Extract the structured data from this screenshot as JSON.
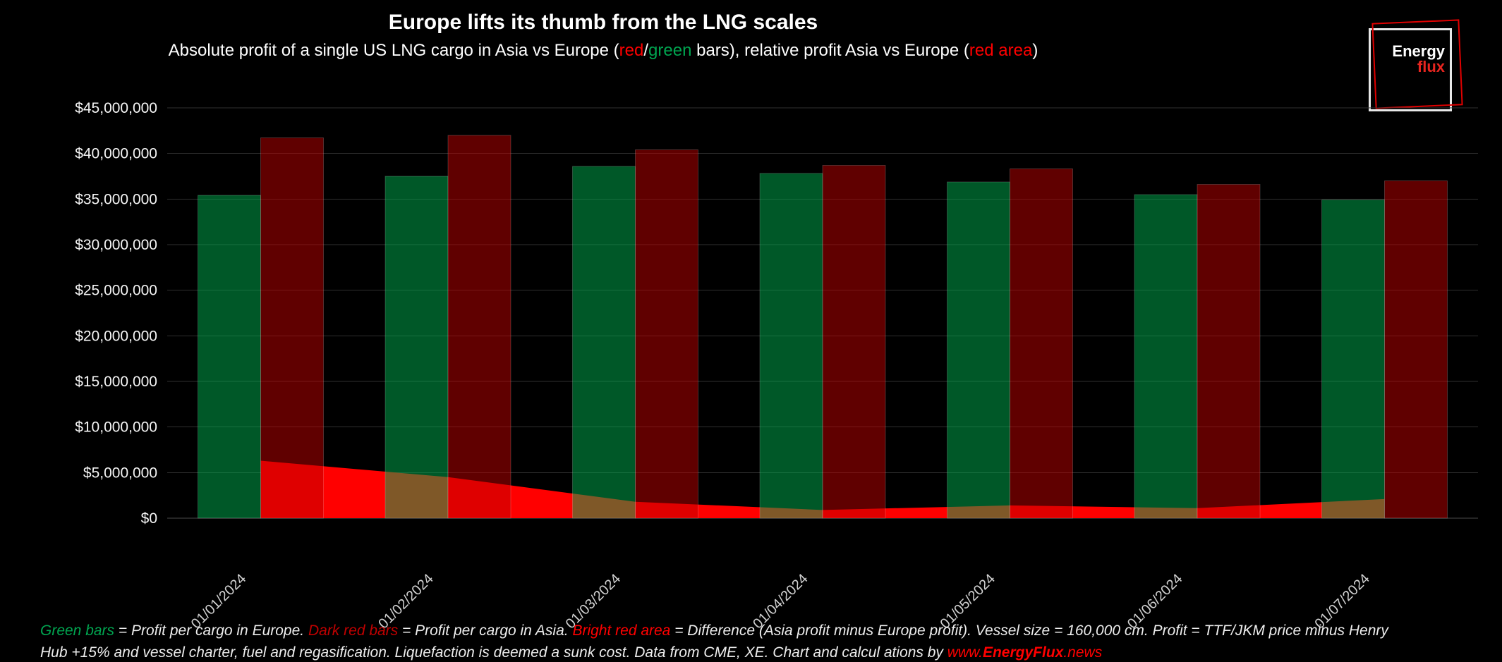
{
  "header": {
    "title": "Europe lifts its thumb from the LNG scales",
    "subtitle": {
      "s1": "Absolute profit of a single US LNG cargo in Asia vs Europe (",
      "red_word": "red",
      "slash": "/",
      "green_word": "green",
      "s2": " bars), relative profit Asia vs Europe (",
      "red_area_word": "red area",
      "s3": ")"
    }
  },
  "logo": {
    "line1": "Energy",
    "line2": "flux"
  },
  "chart_data": {
    "type": "bar+area",
    "title": "Europe lifts its thumb from the LNG scales",
    "categories": [
      "01/01/2024",
      "01/02/2024",
      "01/03/2024",
      "01/04/2024",
      "01/05/2024",
      "01/06/2024",
      "01/07/2024"
    ],
    "series": [
      {
        "name": "Profit per cargo in Europe",
        "type": "bar",
        "color": "#00B050",
        "values": [
          35400000,
          37500000,
          38600000,
          37800000,
          36900000,
          35500000,
          34900000
        ]
      },
      {
        "name": "Profit per cargo in Asia",
        "type": "bar",
        "color": "#C00000",
        "values": [
          41700000,
          42000000,
          40400000,
          38700000,
          38300000,
          36600000,
          37000000
        ]
      },
      {
        "name": "Difference (Asia profit minus Europe profit)",
        "type": "area",
        "color": "#FF0000",
        "values": [
          6300000,
          4500000,
          1800000,
          900000,
          1400000,
          1100000,
          2100000
        ]
      }
    ],
    "ylim": [
      0,
      45000000
    ],
    "ytick_step": 5000000,
    "ytick_labels": [
      "$0",
      "$5,000,000",
      "$10,000,000",
      "$15,000,000",
      "$20,000,000",
      "$25,000,000",
      "$30,000,000",
      "$35,000,000",
      "$40,000,000",
      "$45,000,000"
    ],
    "grid": true,
    "legend": "none",
    "bar_fill_opacity": 0.5
  },
  "footer": {
    "green_label": "Green bars",
    "t1": " = Profit per cargo in Europe. ",
    "darkred_label": "Dark red bars",
    "t2": " = Profit per cargo in Asia. ",
    "red_label": "Bright red area",
    "t3": " = Difference (Asia profit minus Europe profit). Vessel size = 160,000 cm. Profit = TTF/JKM price minus Henry",
    "line2_text": "Hub +15% and vessel charter, fuel and regasification. Liquefaction is deemed a sunk cost. Data from CME, XE. Chart and calcul ations by ",
    "link_pre": "www.",
    "link_name": "EnergyFlux",
    "link_suffix": ".news"
  }
}
